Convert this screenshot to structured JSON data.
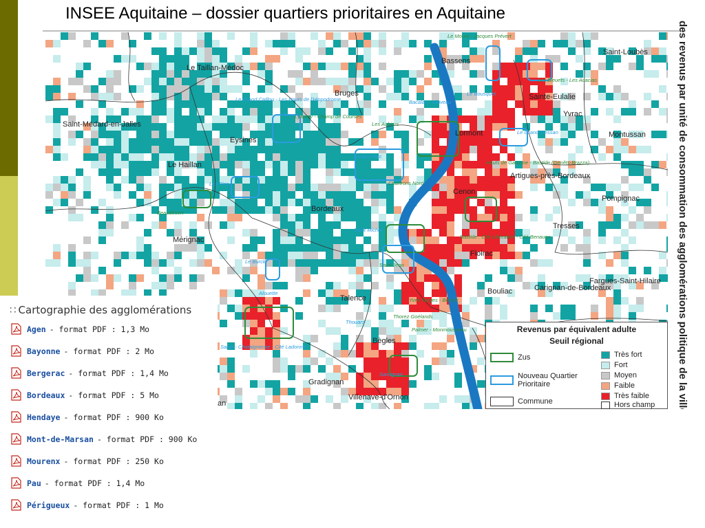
{
  "slide": {
    "title": "INSEE Aquitaine – dossier quartiers prioritaires en Aquitaine"
  },
  "map": {
    "side_title": "des revenus par unité de consommation des agglomérations politique de la ville - seuil régional",
    "communes": [
      "Le Taillan-Médoc",
      "Bassens",
      "Saint-Loubès",
      "Bruges",
      "Saint-Médard-en-Jalles",
      "Eysines",
      "Sainte-Eulalie",
      "Yvrac",
      "Lormont",
      "Montussan",
      "Le Haillan",
      "Artigues-près-Bordeaux",
      "Cenon",
      "Pompignac",
      "Bordeaux",
      "Tresses",
      "Mérignac",
      "Floirac",
      "Talence",
      "Bouliac",
      "Carignan-de-Bordeaux",
      "Fargues-Saint-Hilaire",
      "Bègles",
      "Gradignan",
      "Villenave-d'Ornon",
      "an"
    ],
    "neighbourhoods": [
      "Le Moura - Jacques Prévert",
      "Le Grand Caillou - Les Hauts de l'Hippodrome",
      "Lyautey - Champ de Courses",
      "Bacalan - Claveau",
      "Les Aubiers",
      "Le Bousquet",
      "Les Bleuets - Les Acacias",
      "Le Grand Tressan",
      "Hauts de Garonne - Bastide (Genêts-Brazza)",
      "Grand Parc",
      "Chartrons Nord",
      "Les Pins",
      "Beaudésert",
      "Saint Michel",
      "Bastide : Cité Libération - Cité Benauge",
      "Le Burck",
      "Saint-Jean",
      "Alouette",
      "Yves Farges - Belcier",
      "Thouars",
      "Thorez Goélands",
      "Saige - Chataigneraie - Cité Ladonne",
      "Palmer - Monmousseau",
      "Sarcignan"
    ],
    "colors": {
      "tres_fort": "#13a3a3",
      "fort": "#c6ecec",
      "moyen": "#c8c8c8",
      "faible": "#f4a582",
      "tres_faible": "#e8212a",
      "river": "#1a78c2",
      "zus": "#2e8b3a",
      "nqp": "#2b9be0"
    }
  },
  "legend": {
    "title": "Revenus par équivalent adulte",
    "subtitle": "Seuil régional",
    "zus": "Zus",
    "nqp": "Nouveau Quartier Prioritaire",
    "commune": "Commune",
    "classes": {
      "tres_fort": "Très fort",
      "fort": "Fort",
      "moyen": "Moyen",
      "faible": "Faible",
      "tres_faible": "Très faible",
      "hors_champ": "Hors champ"
    }
  },
  "panel": {
    "title": "Cartographie des agglomérations",
    "files": [
      {
        "name": "Agen",
        "desc": "- format PDF : 1,3 Mo"
      },
      {
        "name": "Bayonne",
        "desc": "- format PDF : 2 Mo"
      },
      {
        "name": "Bergerac",
        "desc": "- format PDF : 1,4 Mo"
      },
      {
        "name": "Bordeaux",
        "desc": "- format PDF : 5 Mo"
      },
      {
        "name": "Hendaye",
        "desc": "- format PDF : 900 Ko"
      },
      {
        "name": "Mont-de-Marsan",
        "desc": "- format PDF : 900 Ko"
      },
      {
        "name": "Mourenx",
        "desc": "- format PDF : 250 Ko"
      },
      {
        "name": "Pau",
        "desc": "- format PDF : 1,4 Mo"
      },
      {
        "name": "Périgueux",
        "desc": "- format PDF : 1 Mo"
      }
    ]
  }
}
